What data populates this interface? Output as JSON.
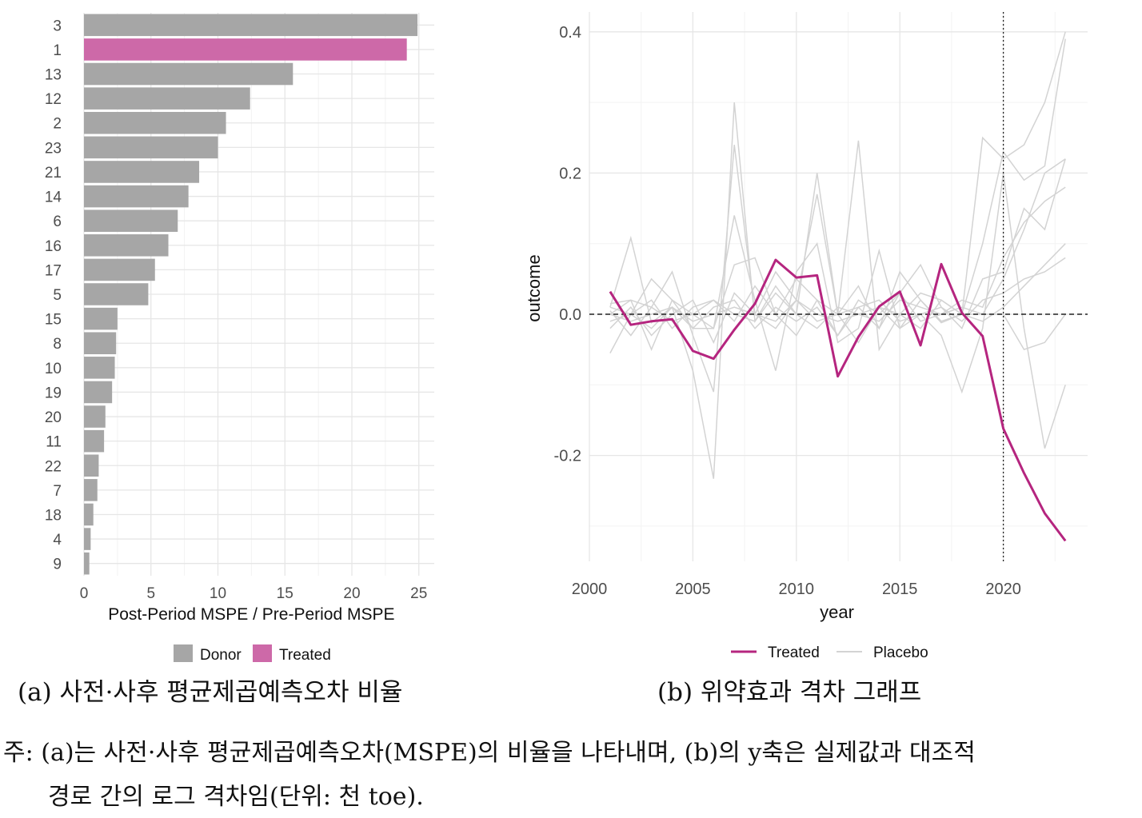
{
  "chart_data": [
    {
      "type": "bar",
      "orientation": "horizontal",
      "categories": [
        "3",
        "1",
        "13",
        "12",
        "2",
        "23",
        "21",
        "14",
        "6",
        "16",
        "17",
        "5",
        "15",
        "8",
        "10",
        "19",
        "20",
        "11",
        "22",
        "7",
        "18",
        "4",
        "9"
      ],
      "values": [
        24.9,
        24.1,
        15.6,
        12.4,
        10.6,
        10.0,
        8.6,
        7.8,
        7.0,
        6.3,
        5.3,
        4.8,
        2.5,
        2.4,
        2.3,
        2.1,
        1.6,
        1.5,
        1.1,
        1.0,
        0.7,
        0.5,
        0.4
      ],
      "groups": [
        "Donor",
        "Treated",
        "Donor",
        "Donor",
        "Donor",
        "Donor",
        "Donor",
        "Donor",
        "Donor",
        "Donor",
        "Donor",
        "Donor",
        "Donor",
        "Donor",
        "Donor",
        "Donor",
        "Donor",
        "Donor",
        "Donor",
        "Donor",
        "Donor",
        "Donor",
        "Donor"
      ],
      "xlabel": "Post-Period MSPE / Pre-Period MSPE",
      "ylabel": "",
      "xlim": [
        0,
        26
      ],
      "xticks": [
        0,
        5,
        10,
        15,
        20,
        25
      ],
      "grid": true,
      "legend": {
        "position": "bottom",
        "entries": [
          {
            "name": "Donor",
            "color": "#a6a6a6"
          },
          {
            "name": "Treated",
            "color": "#cd69a8"
          }
        ]
      }
    },
    {
      "type": "line",
      "xlabel": "year",
      "ylabel": "outcome",
      "xlim": [
        1999.5,
        2024.5
      ],
      "ylim": [
        -0.35,
        0.43
      ],
      "xticks": [
        2000,
        2005,
        2010,
        2015,
        2020
      ],
      "yticks": [
        -0.2,
        0.0,
        0.2,
        0.4
      ],
      "ytick_labels": [
        "-0.2",
        "0.0",
        "0.2",
        "0.4"
      ],
      "treatment_year": 2020,
      "zero_line": true,
      "grid": true,
      "x": [
        2001,
        2002,
        2003,
        2004,
        2005,
        2006,
        2007,
        2008,
        2009,
        2010,
        2011,
        2012,
        2013,
        2014,
        2015,
        2016,
        2017,
        2018,
        2019,
        2020,
        2021,
        2022,
        2023
      ],
      "series": [
        {
          "name": "Treated",
          "color": "#b5257f",
          "values": [
            0.032,
            -0.015,
            -0.01,
            -0.007,
            -0.052,
            -0.063,
            -0.022,
            0.015,
            0.077,
            0.052,
            0.055,
            -0.088,
            -0.032,
            0.011,
            0.032,
            -0.044,
            0.071,
            0.002,
            -0.031,
            -0.162,
            -0.225,
            -0.282,
            -0.321
          ]
        },
        {
          "name": "Placebo",
          "color": "#d3d3d3",
          "values": [
            0.01,
            0.108,
            -0.012,
            0.01,
            -0.08,
            -0.233,
            0.3,
            -0.01,
            0.04,
            0.0,
            0.2,
            0.0,
            0.04,
            -0.02,
            0.06,
            0.02,
            -0.012,
            0.0,
            0.25,
            0.22,
            0.24,
            0.3,
            0.4
          ]
        },
        {
          "name": "Placebo",
          "color": "#d3d3d3",
          "values": [
            0.0,
            0.02,
            0.01,
            0.06,
            -0.03,
            -0.11,
            0.24,
            0.0,
            0.06,
            0.02,
            0.17,
            0.0,
            0.246,
            -0.05,
            0.0,
            0.03,
            0.02,
            0.0,
            0.1,
            0.23,
            0.19,
            0.21,
            0.39
          ]
        },
        {
          "name": "Placebo",
          "color": "#d3d3d3",
          "values": [
            -0.055,
            0.0,
            0.05,
            0.02,
            -0.02,
            -0.02,
            0.14,
            0.02,
            -0.08,
            0.06,
            0.1,
            -0.04,
            -0.02,
            0.09,
            -0.02,
            0.0,
            -0.03,
            -0.11,
            -0.02,
            0.2,
            -0.02,
            -0.19,
            -0.1
          ]
        },
        {
          "name": "Placebo",
          "color": "#d3d3d3",
          "values": [
            0.015,
            0.02,
            -0.05,
            0.02,
            0.0,
            -0.02,
            0.07,
            0.08,
            0.0,
            0.05,
            0.02,
            -0.03,
            0.02,
            0.0,
            0.03,
            0.07,
            0.01,
            -0.02,
            0.05,
            0.06,
            0.15,
            0.12,
            0.22
          ]
        },
        {
          "name": "Placebo",
          "color": "#d3d3d3",
          "values": [
            -0.01,
            0.0,
            0.02,
            -0.02,
            0.01,
            0.02,
            0.0,
            -0.01,
            0.03,
            0.0,
            -0.02,
            0.01,
            0.0,
            -0.01,
            0.02,
            0.01,
            0.0,
            0.02,
            0.01,
            0.08,
            0.13,
            0.16,
            0.18
          ]
        },
        {
          "name": "Placebo",
          "color": "#d3d3d3",
          "values": [
            0.0,
            -0.01,
            0.0,
            0.01,
            -0.02,
            0.01,
            0.02,
            -0.02,
            0.01,
            -0.01,
            0.01,
            -0.03,
            0.01,
            0.02,
            -0.01,
            0.0,
            0.01,
            -0.01,
            0.02,
            0.03,
            0.05,
            0.06,
            0.08
          ]
        },
        {
          "name": "Placebo",
          "color": "#d3d3d3",
          "values": [
            -0.02,
            0.01,
            -0.03,
            0.0,
            0.02,
            -0.04,
            0.03,
            0.0,
            -0.02,
            0.02,
            -0.01,
            0.0,
            -0.04,
            0.01,
            0.0,
            -0.02,
            0.02,
            0.0,
            -0.01,
            0.01,
            0.04,
            0.07,
            0.1
          ]
        },
        {
          "name": "Placebo",
          "color": "#d3d3d3",
          "values": [
            0.005,
            -0.03,
            0.01,
            -0.01,
            0.0,
            0.02,
            -0.01,
            0.04,
            0.0,
            -0.03,
            0.02,
            0.0,
            0.01,
            -0.02,
            0.03,
            -0.01,
            0.0,
            0.01,
            0.0,
            0.05,
            0.12,
            0.2,
            0.22
          ]
        },
        {
          "name": "Placebo",
          "color": "#d3d3d3",
          "values": [
            0.01,
            0.0,
            -0.02,
            0.01,
            -0.01,
            0.0,
            0.01,
            0.0,
            -0.01,
            0.02,
            0.0,
            -0.01,
            0.0,
            0.01,
            -0.02,
            0.02,
            -0.01,
            0.0,
            0.0,
            0.0,
            -0.05,
            -0.04,
            0.0
          ]
        }
      ]
    }
  ],
  "labels": {
    "legend_a": [
      {
        "label": "Donor",
        "color": "#a6a6a6"
      },
      {
        "label": "Treated",
        "color": "#cd69a8"
      }
    ],
    "legend_b": [
      {
        "label": "Treated",
        "color": "#b5257f"
      },
      {
        "label": "Placebo",
        "color": "#d3d3d3"
      }
    ]
  },
  "captions": {
    "a": "(a) 사전·사후 평균제곱예측오차 비율",
    "b": "(b) 위약효과 격차 그래프",
    "note_line1": "주: (a)는 사전·사후 평균제곱예측오차(MSPE)의 비율을 나타내며, (b)의 y축은 실제값과 대조적",
    "note_line2": "경로 간의 로그 격차임(단위: 천 toe)."
  }
}
